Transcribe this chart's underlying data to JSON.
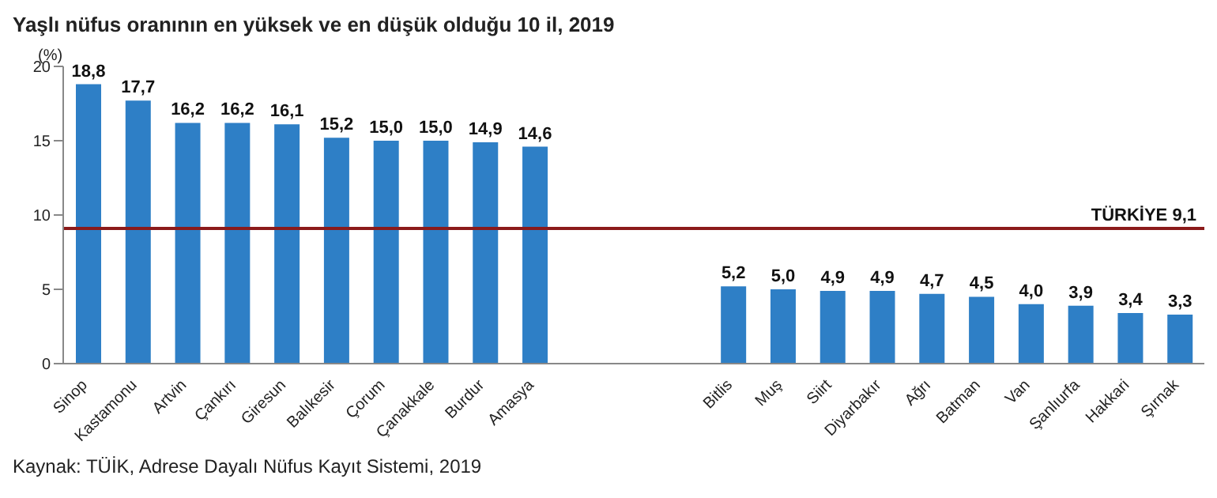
{
  "chart_data": {
    "type": "bar",
    "title": "Yaşlı nüfus oranının en yüksek ve en düşük olduğu 10 il, 2019",
    "ylabel": "(%)",
    "categories": [
      "Sinop",
      "Kastamonu",
      "Artvin",
      "Çankırı",
      "Giresun",
      "Balıkesir",
      "Çorum",
      "Çanakkale",
      "Burdur",
      "Amasya",
      null,
      null,
      null,
      "Bitlis",
      "Muş",
      "Siirt",
      "Diyarbakır",
      "Ağrı",
      "Batman",
      "Van",
      "Şanlıurfa",
      "Hakkari",
      "Şırnak"
    ],
    "values": [
      18.8,
      17.7,
      16.2,
      16.2,
      16.1,
      15.2,
      15.0,
      15.0,
      14.9,
      14.6,
      null,
      null,
      null,
      5.2,
      5.0,
      4.9,
      4.9,
      4.7,
      4.5,
      4.0,
      3.9,
      3.4,
      3.3
    ],
    "value_labels": [
      "18,8",
      "17,7",
      "16,2",
      "16,2",
      "16,1",
      "15,2",
      "15,0",
      "15,0",
      "14,9",
      "14,6",
      null,
      null,
      null,
      "5,2",
      "5,0",
      "4,9",
      "4,9",
      "4,7",
      "4,5",
      "4,0",
      "3,9",
      "3,4",
      "3,3"
    ],
    "color": "#2e7fc6",
    "ylim": [
      0,
      20
    ],
    "yticks": [
      0,
      5,
      10,
      15,
      20
    ],
    "ref_lines": [
      {
        "axis": "y",
        "value": 9.1,
        "label": "TÜRKİYE 9,1",
        "color": "#8b1a1a"
      }
    ],
    "annotations": [
      "Kaynak: TÜİK, Adrese Dayalı Nüfus Kayıt Sistemi, 2019"
    ]
  }
}
